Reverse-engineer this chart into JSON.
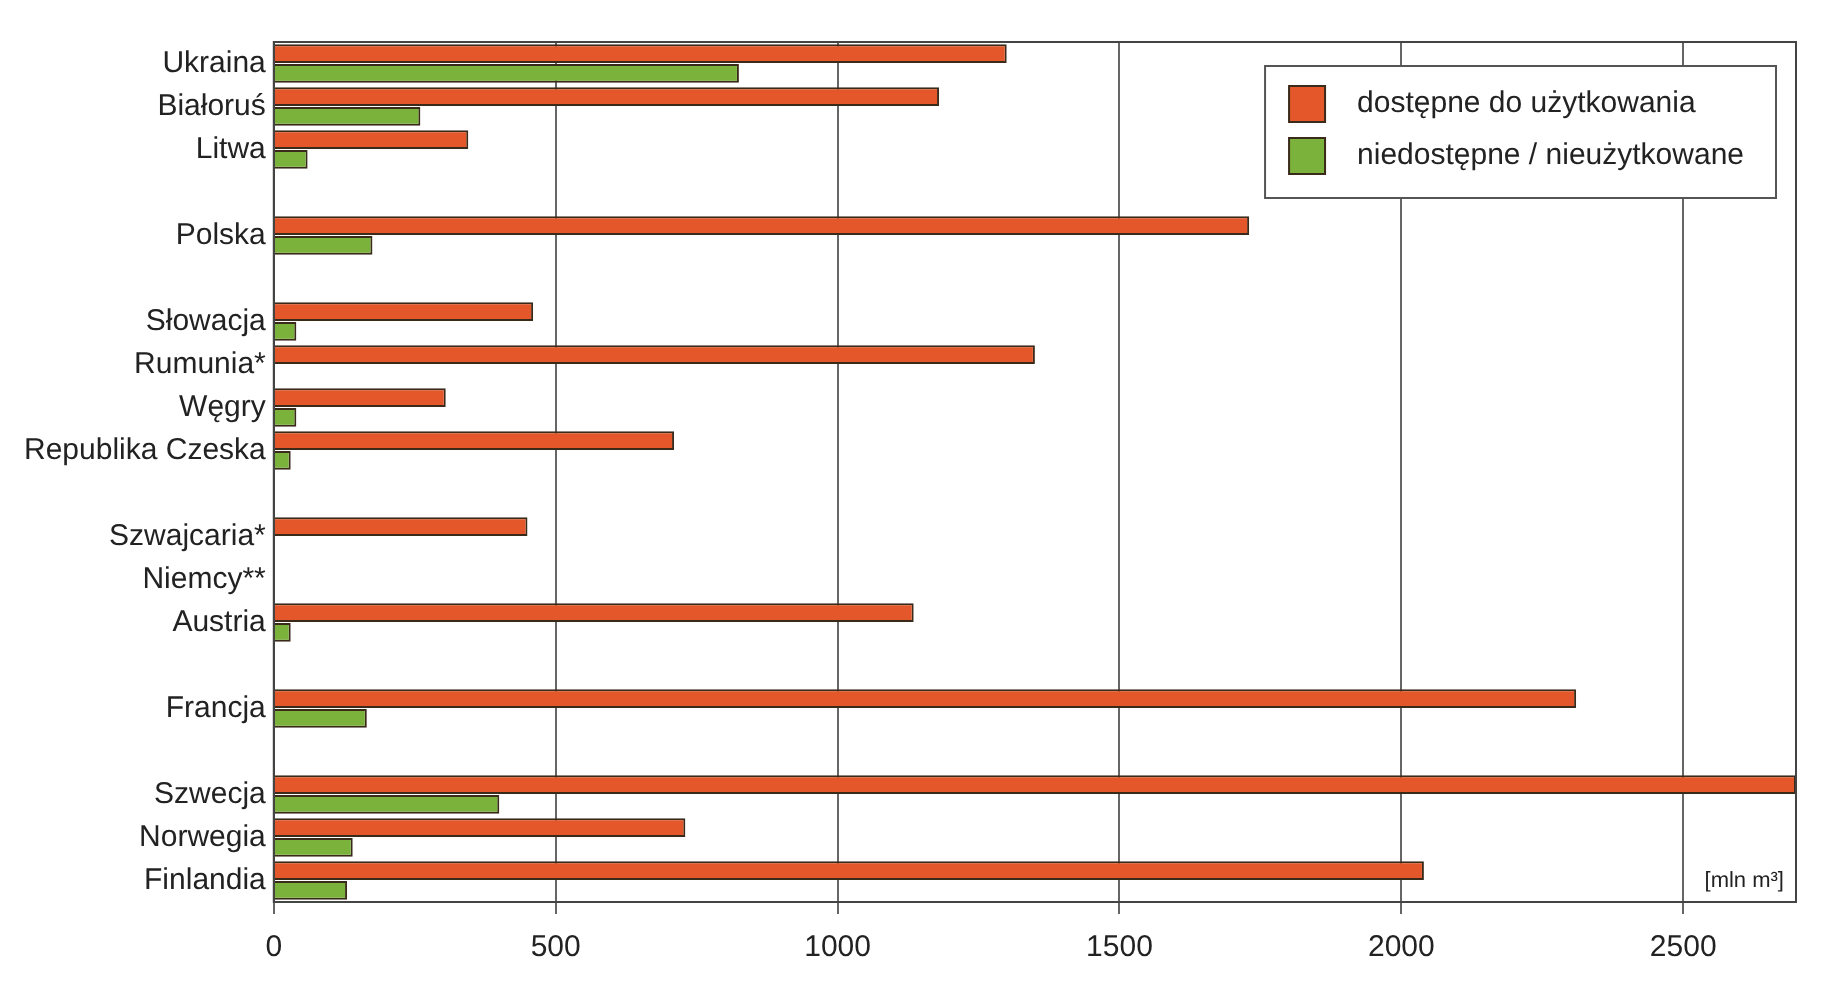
{
  "chart_data": {
    "type": "bar",
    "orientation": "horizontal",
    "categories": [
      "Ukraina",
      "Białoruś",
      "Litwa",
      null,
      "Polska",
      null,
      "Słowacja",
      "Rumunia*",
      "Węgry",
      "Republika Czeska",
      null,
      "Szwajcaria*",
      "Niemcy**",
      "Austria",
      null,
      "Francja",
      null,
      "Szwecja",
      "Norwegia",
      "Finlandia"
    ],
    "series": [
      {
        "name": "dostępne do użytkowania",
        "color": "#e4572a",
        "values": [
          1300,
          1180,
          345,
          null,
          1730,
          null,
          460,
          1350,
          305,
          710,
          null,
          450,
          null,
          1135,
          null,
          2310,
          null,
          2700,
          730,
          2040
        ]
      },
      {
        "name": "niedostępne / nieużytkowane",
        "color": "#7ab23c",
        "values": [
          825,
          260,
          60,
          null,
          175,
          null,
          40,
          null,
          40,
          30,
          null,
          null,
          null,
          30,
          null,
          165,
          null,
          400,
          140,
          130
        ]
      }
    ],
    "xlim": [
      0,
      2700
    ],
    "xticks": [
      0,
      500,
      1000,
      1500,
      2000,
      2500
    ],
    "grid": "x",
    "legend": "top right",
    "annotations": [
      "[mln m³]"
    ]
  }
}
